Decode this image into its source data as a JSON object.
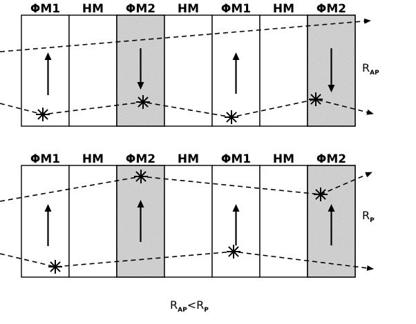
{
  "panel_top": {
    "layers": [
      {
        "label": "ΦM1",
        "shaded": false,
        "magnetization": "up"
      },
      {
        "label": "HM",
        "shaded": false,
        "magnetization": ""
      },
      {
        "label": "ΦM2",
        "shaded": true,
        "magnetization": "down"
      },
      {
        "label": "HM",
        "shaded": false,
        "magnetization": ""
      },
      {
        "label": "ΦM1",
        "shaded": false,
        "magnetization": "up"
      },
      {
        "label": "HM",
        "shaded": false,
        "magnetization": ""
      },
      {
        "label": "ΦM2",
        "shaded": true,
        "magnetization": "down"
      }
    ],
    "resistance_main": "R",
    "resistance_sub": "AP"
  },
  "panel_bottom": {
    "layers": [
      {
        "label": "ΦM1",
        "shaded": false,
        "magnetization": "up"
      },
      {
        "label": "HM",
        "shaded": false,
        "magnetization": ""
      },
      {
        "label": "ΦM2",
        "shaded": true,
        "magnetization": "up"
      },
      {
        "label": "HM",
        "shaded": false,
        "magnetization": ""
      },
      {
        "label": "ΦM1",
        "shaded": false,
        "magnetization": "up"
      },
      {
        "label": "HM",
        "shaded": false,
        "magnetization": ""
      },
      {
        "label": "ΦM2",
        "shaded": true,
        "magnetization": "up"
      }
    ],
    "resistance_main": "R",
    "resistance_sub": "P"
  },
  "caption": {
    "left_main": "R",
    "left_sub": "AP",
    "relation": "<",
    "right_main": "R",
    "right_sub": "P"
  },
  "colors": {
    "line": "#000000",
    "shaded_fill": "#c4c4c4",
    "background": "#ffffff"
  },
  "icons": {
    "scatter_event": "star-burst-icon",
    "magnetization": "arrow-icon"
  }
}
